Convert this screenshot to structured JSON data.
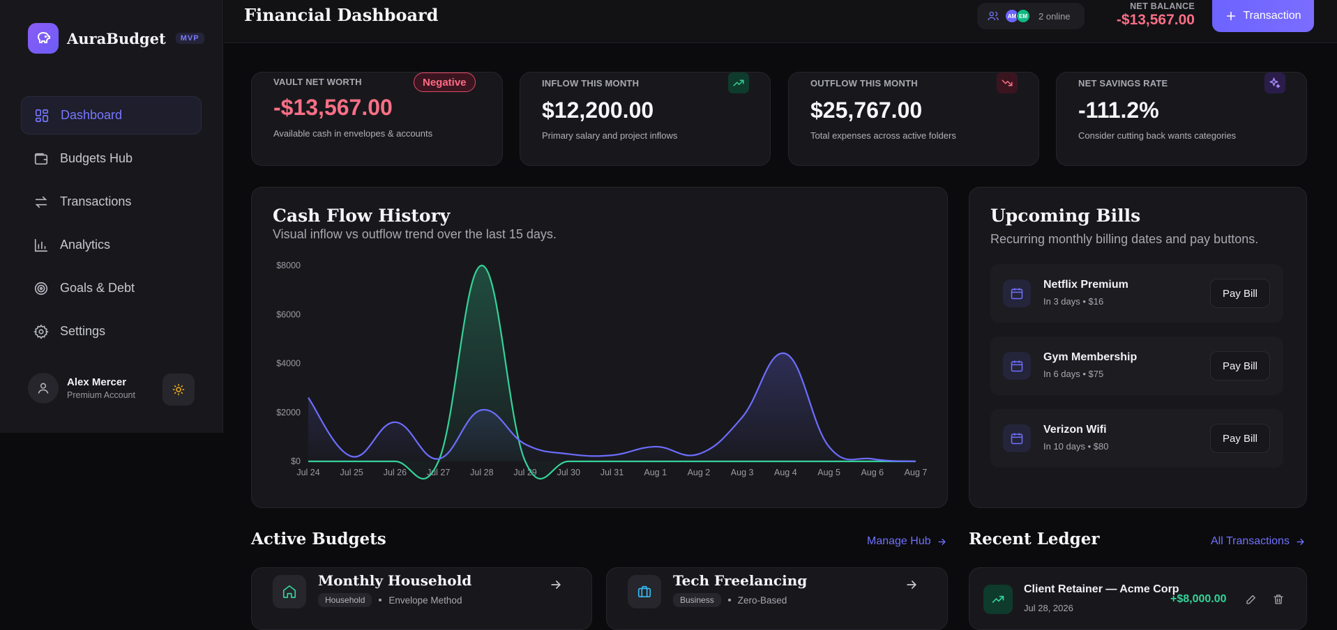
{
  "app": {
    "name": "AuraBudget",
    "badge": "MVP"
  },
  "sidebar": {
    "items": [
      {
        "label": "Dashboard",
        "icon": "grid-icon",
        "active": true
      },
      {
        "label": "Budgets Hub",
        "icon": "wallet-icon"
      },
      {
        "label": "Transactions",
        "icon": "swap-arrows-icon"
      },
      {
        "label": "Analytics",
        "icon": "bar-chart-icon"
      },
      {
        "label": "Goals & Debt",
        "icon": "target-icon"
      },
      {
        "label": "Settings",
        "icon": "gear-icon"
      }
    ],
    "user": {
      "name": "Alex Mercer",
      "plan": "Premium Account"
    }
  },
  "header": {
    "title": "Financial Dashboard",
    "online": {
      "avatars": [
        "AM",
        "EM"
      ],
      "label": "2 online"
    },
    "net_balance_label": "NET BALANCE",
    "net_balance_value": "-$13,567.00",
    "transaction_button": "Transaction"
  },
  "stats": [
    {
      "label": "VAULT NET WORTH",
      "value": "-$13,567.00",
      "sub": "Available cash in envelopes & accounts",
      "pill": "Negative",
      "color": "#fb6f86"
    },
    {
      "label": "INFLOW THIS MONTH",
      "value": "$12,200.00",
      "sub": "Primary salary and project inflows",
      "icon": "trend-up-icon",
      "color": "#34d399"
    },
    {
      "label": "OUTFLOW THIS MONTH",
      "value": "$25,767.00",
      "sub": "Total expenses across active folders",
      "icon": "trend-down-icon",
      "color": "#fb6f86"
    },
    {
      "label": "NET SAVINGS RATE",
      "value": "-111.2%",
      "sub": "Consider cutting back wants categories",
      "icon": "sparkles-icon",
      "color": "#a78bfa"
    }
  ],
  "cashflow": {
    "title": "Cash Flow History",
    "subtitle": "Visual inflow vs outflow trend over the last 15 days."
  },
  "chart_data": {
    "type": "area",
    "x": [
      "Jul 24",
      "Jul 25",
      "Jul 26",
      "Jul 27",
      "Jul 28",
      "Jul 29",
      "Jul 30",
      "Jul 31",
      "Aug 1",
      "Aug 2",
      "Aug 3",
      "Aug 4",
      "Aug 5",
      "Aug 6",
      "Aug 7"
    ],
    "series": [
      {
        "values": [
          0,
          0,
          0,
          0,
          8000,
          0,
          0,
          0,
          0,
          0,
          0,
          0,
          0,
          0,
          0
        ],
        "color": "#34d399"
      },
      {
        "values": [
          2600,
          200,
          1600,
          100,
          2100,
          700,
          300,
          250,
          600,
          300,
          1800,
          4400,
          600,
          100,
          0
        ],
        "color": "#6d6dff"
      }
    ],
    "yticks": [
      "$0",
      "$2000",
      "$4000",
      "$6000",
      "$8000"
    ],
    "ylim": [
      0,
      8000
    ],
    "grid": false,
    "legend": "none"
  },
  "bills": {
    "title": "Upcoming Bills",
    "subtitle": "Recurring monthly billing dates and pay buttons.",
    "items": [
      {
        "name": "Netflix Premium",
        "meta": "In 3 days • $16",
        "button": "Pay Bill"
      },
      {
        "name": "Gym Membership",
        "meta": "In 6 days • $75",
        "button": "Pay Bill"
      },
      {
        "name": "Verizon Wifi",
        "meta": "In 10 days • $80",
        "button": "Pay Bill"
      }
    ]
  },
  "budgets": {
    "title": "Active Budgets",
    "link": "Manage Hub",
    "items": [
      {
        "name": "Monthly Household",
        "tag": "Household",
        "method": "Envelope Method",
        "icon": "home-icon"
      },
      {
        "name": "Tech Freelancing",
        "tag": "Business",
        "method": "Zero-Based",
        "icon": "briefcase-icon"
      }
    ]
  },
  "ledger": {
    "title": "Recent Ledger",
    "link": "All Transactions",
    "items": [
      {
        "name": "Client Retainer — Acme Corp",
        "date": "Jul 28, 2026",
        "amount": "+$8,000.00"
      }
    ]
  }
}
